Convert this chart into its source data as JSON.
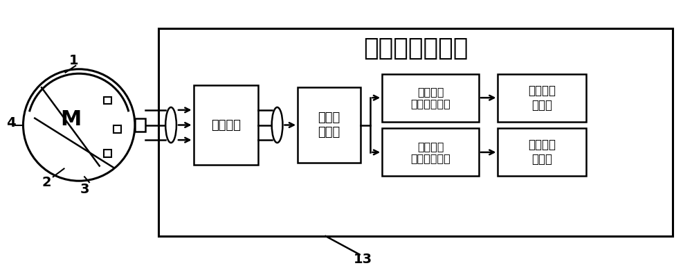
{
  "title": "数字信号处理器",
  "label_13": "13",
  "box_linear": "线性组合",
  "box_filter": "复因数\n滤波器",
  "box_pll1": "第一同步\n参考系锁相环",
  "box_pll2": "第二同步\n参考系锁相环",
  "box_static": "静态偏心\n百分比",
  "box_dynamic": "动态偏心\n百分比",
  "motor_label": "M",
  "bg_color": "#ffffff",
  "line_color": "#000000",
  "font_size_title": 26,
  "font_size_box": 13,
  "font_size_label": 14
}
